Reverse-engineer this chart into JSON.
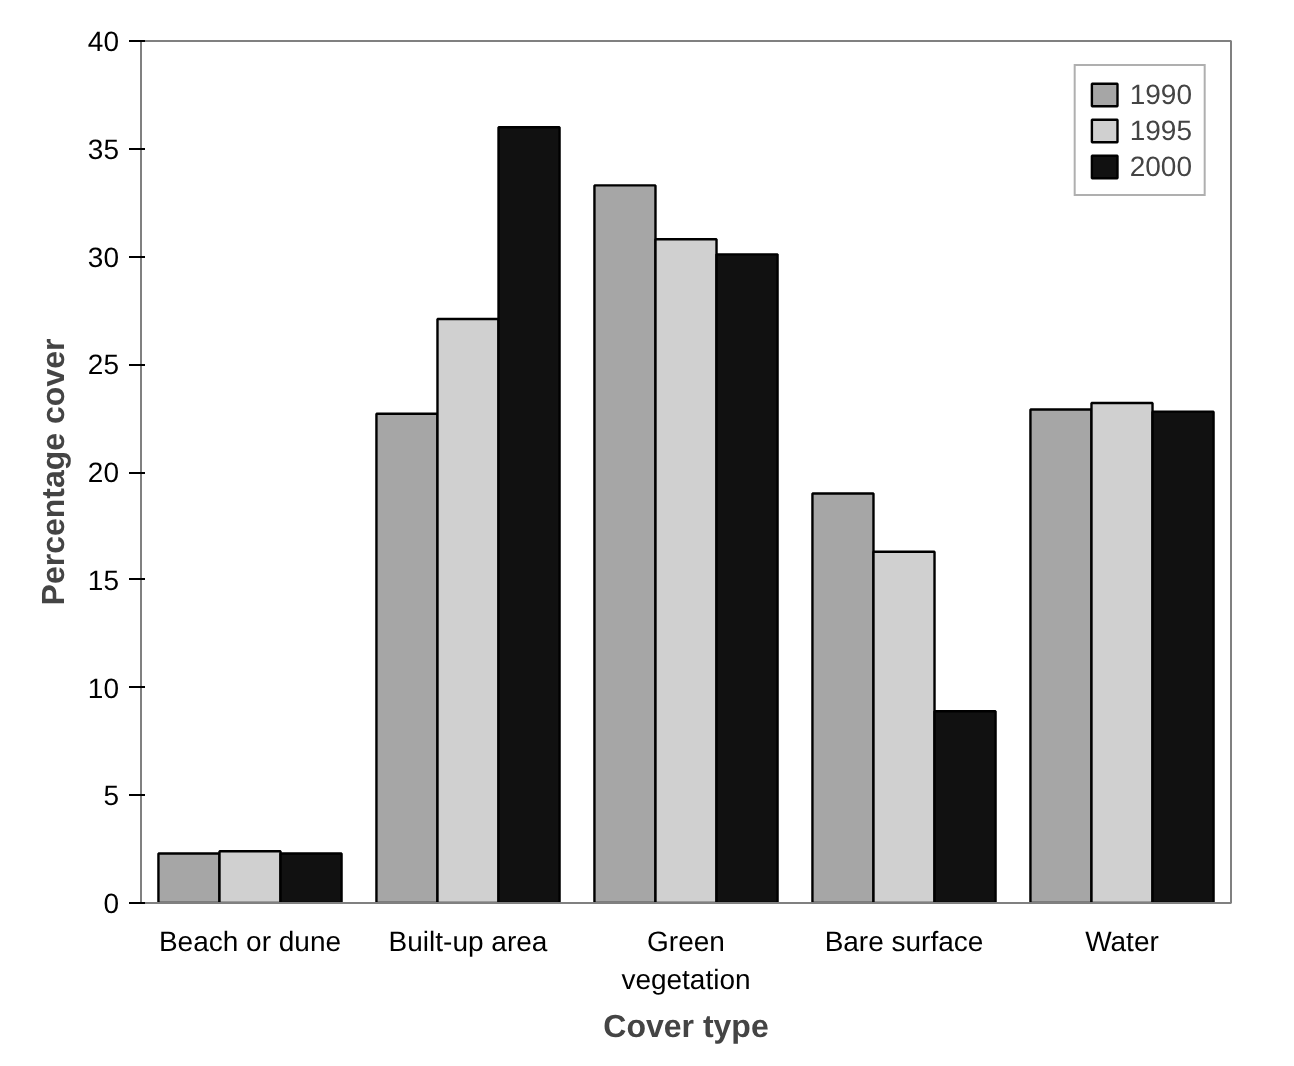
{
  "chart_data": {
    "type": "bar",
    "xlabel": "Cover type",
    "ylabel": "Percentage cover",
    "categories": [
      "Beach or dune",
      "Built-up area",
      "Green\nvegetation",
      "Bare surface",
      "Water"
    ],
    "series": [
      {
        "name": "1990",
        "color": "#a6a6a6",
        "values": [
          2.3,
          22.7,
          33.3,
          19.0,
          22.9
        ]
      },
      {
        "name": "1995",
        "color": "#d0d0d0",
        "values": [
          2.4,
          27.1,
          30.8,
          16.3,
          23.2
        ]
      },
      {
        "name": "2000",
        "color": "#111111",
        "values": [
          2.3,
          36.0,
          30.1,
          8.9,
          22.8
        ]
      }
    ],
    "ylim": [
      0,
      40
    ],
    "yticks": [
      0,
      5,
      10,
      15,
      20,
      25,
      30,
      35,
      40
    ],
    "grid": false,
    "legend": "top right"
  }
}
